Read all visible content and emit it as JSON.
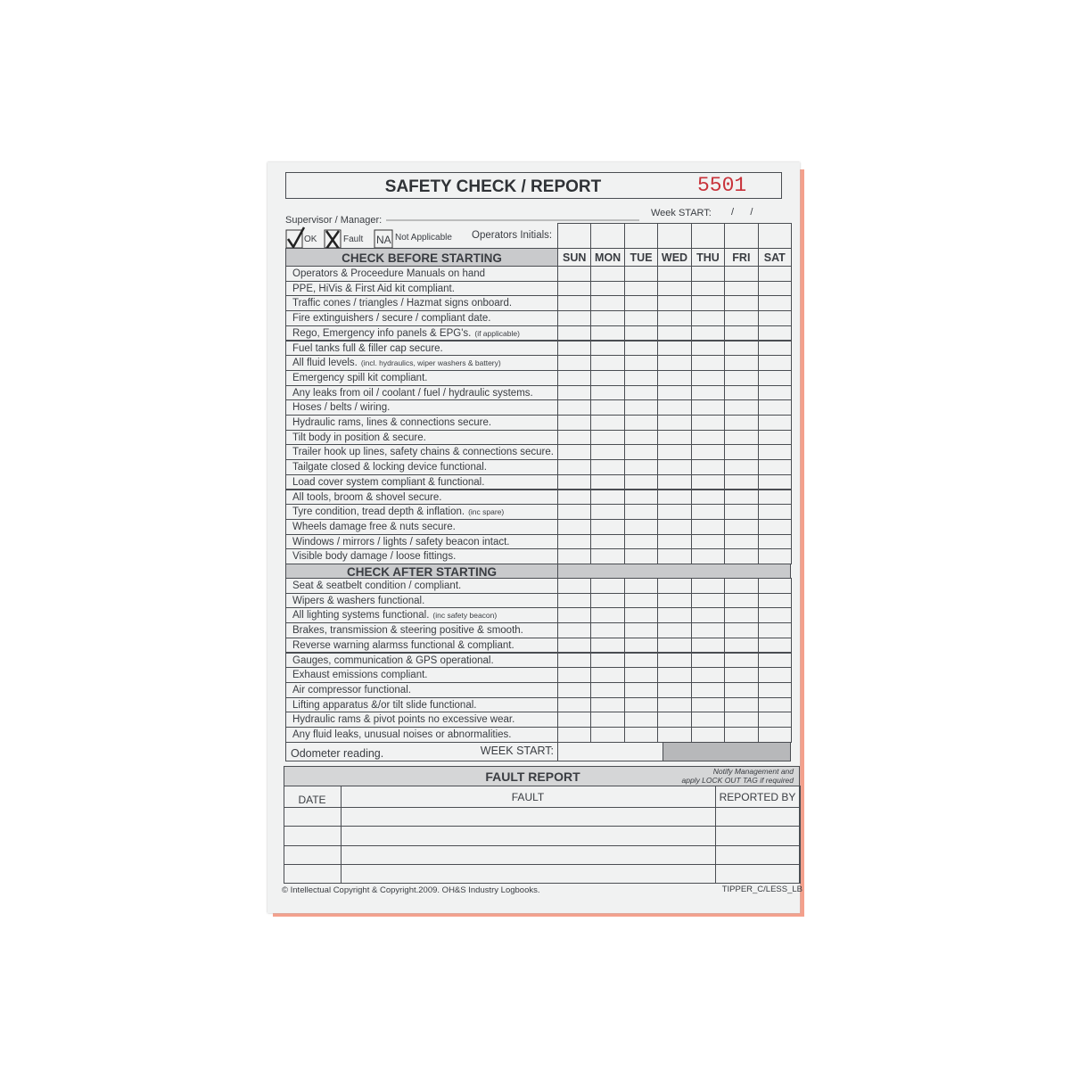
{
  "header": {
    "title": "SAFETY CHECK / REPORT",
    "number": "5501",
    "supervisor_label": "Supervisor / Manager:",
    "week_start_label": "Week START:",
    "date_slashes": "/      /"
  },
  "legend": [
    {
      "symbol": "",
      "label": "OK"
    },
    {
      "symbol": "",
      "label": "Fault"
    },
    {
      "symbol": "NA",
      "label": "Not Applicable"
    }
  ],
  "initials_label": "Operators Initials:",
  "days": [
    "SUN",
    "MON",
    "TUE",
    "WED",
    "THU",
    "FRI",
    "SAT"
  ],
  "sections": [
    {
      "heading": "CHECK BEFORE STARTING",
      "items": [
        {
          "text": "Operators & Proceedure Manuals on hand"
        },
        {
          "text": "PPE, HiVis & First Aid kit compliant."
        },
        {
          "text": "Traffic cones / triangles / Hazmat signs onboard."
        },
        {
          "text": "Fire extinguishers / secure / compliant date."
        },
        {
          "text": "Rego, Emergency info panels & EPG's.",
          "note": "(if applicable)"
        },
        {
          "text": "Fuel tanks full & filler cap secure."
        },
        {
          "text": "All fluid levels.",
          "note": "(incl. hydraulics, wiper washers & battery)"
        },
        {
          "text": "Emergency spill kit compliant."
        },
        {
          "text": "Any leaks from oil / coolant / fuel / hydraulic systems."
        },
        {
          "text": "Hoses / belts / wiring."
        },
        {
          "text": "Hydraulic rams, lines & connections secure."
        },
        {
          "text": "Tilt body in position & secure."
        },
        {
          "text": "Trailer hook up lines, safety chains & connections secure."
        },
        {
          "text": "Tailgate closed & locking device functional."
        },
        {
          "text": "Load cover system compliant & functional."
        },
        {
          "text": "All tools, broom & shovel secure."
        },
        {
          "text": "Tyre condition, tread depth & inflation.",
          "note": "(inc spare)"
        },
        {
          "text": "Wheels damage free & nuts secure."
        },
        {
          "text": "Windows / mirrors / lights / safety beacon intact."
        },
        {
          "text": "Visible body damage / loose fittings."
        }
      ]
    },
    {
      "heading": "CHECK AFTER STARTING",
      "items": [
        {
          "text": "Seat & seatbelt condition / compliant."
        },
        {
          "text": "Wipers & washers functional."
        },
        {
          "text": "All lighting systems functional.",
          "note": "(inc safety beacon)"
        },
        {
          "text": "Brakes, transmission & steering positive & smooth."
        },
        {
          "text": "Reverse warning alarmss functional & compliant."
        },
        {
          "text": "Gauges, communication & GPS operational."
        },
        {
          "text": "Exhaust emissions compliant."
        },
        {
          "text": "Air compressor functional."
        },
        {
          "text": "Lifting apparatus &/or tilt slide functional."
        },
        {
          "text": "Hydraulic rams & pivot points no excessive wear."
        },
        {
          "text": "Any fluid leaks, unusual noises or abnormalities."
        }
      ]
    }
  ],
  "odometer": {
    "label": "Odometer reading.",
    "week_start": "WEEK START:"
  },
  "fault_report": {
    "title": "FAULT REPORT",
    "note_line1": "Notify Management and",
    "note_line2": "apply LOCK OUT TAG if required",
    "columns": [
      "DATE",
      "FAULT",
      "REPORTED BY"
    ]
  },
  "footer": {
    "copyright": "© Intellectual Copyright & Copyright.2009.  OH&S Industry Logbooks.",
    "code": "TIPPER_C/LESS_LB"
  }
}
